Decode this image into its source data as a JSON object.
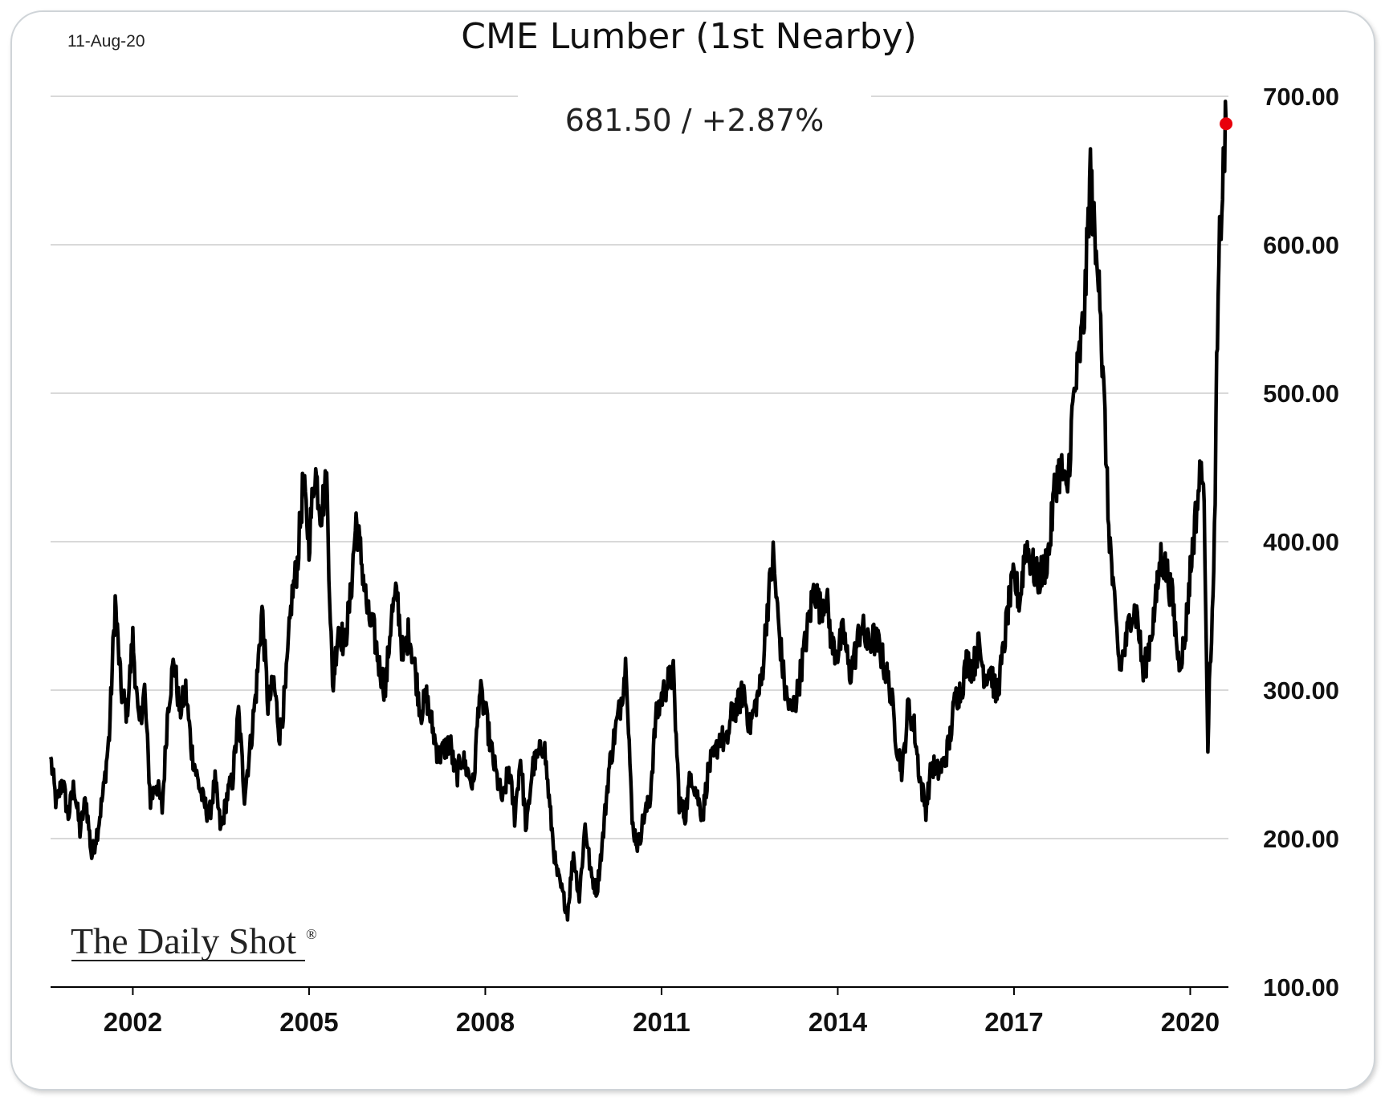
{
  "header": {
    "date": "11-Aug-20",
    "last_value_label": "681.50  /  +2.87%"
  },
  "branding": {
    "name": "The Daily Shot",
    "mark": "®"
  },
  "colors": {
    "line": "#000000",
    "marker": "#e8000b",
    "grid": "#d9d9d9",
    "axis": "#000000"
  },
  "chart_data": {
    "type": "line",
    "title": "CME Lumber (1st Nearby)",
    "xlabel": "",
    "ylabel": "",
    "xlim": [
      2000.6,
      2020.65
    ],
    "ylim": [
      100,
      700
    ],
    "y_ticks": [
      100,
      200,
      300,
      400,
      500,
      600,
      700
    ],
    "y_tick_labels": [
      "100.00",
      "200.00",
      "300.00",
      "400.00",
      "500.00",
      "600.00",
      "700.00"
    ],
    "x_ticks": [
      2002,
      2005,
      2008,
      2011,
      2014,
      2017,
      2020
    ],
    "x_tick_labels": [
      "2002",
      "2005",
      "2008",
      "2011",
      "2014",
      "2017",
      "2020"
    ],
    "grid": "horizontal",
    "last_point": {
      "x": 2020.61,
      "y": 681.5,
      "change_pct": 2.87
    },
    "series": [
      {
        "name": "CME Lumber (1st Nearby)",
        "x": [
          2000.6,
          2000.7,
          2000.8,
          2000.9,
          2001.0,
          2001.1,
          2001.2,
          2001.3,
          2001.4,
          2001.5,
          2001.6,
          2001.7,
          2001.8,
          2001.9,
          2002.0,
          2002.1,
          2002.2,
          2002.3,
          2002.4,
          2002.5,
          2002.6,
          2002.7,
          2002.8,
          2002.9,
          2003.0,
          2003.1,
          2003.2,
          2003.3,
          2003.4,
          2003.5,
          2003.6,
          2003.7,
          2003.8,
          2003.9,
          2004.0,
          2004.1,
          2004.2,
          2004.3,
          2004.4,
          2004.5,
          2004.6,
          2004.7,
          2004.8,
          2004.9,
          2005.0,
          2005.1,
          2005.2,
          2005.3,
          2005.4,
          2005.5,
          2005.6,
          2005.7,
          2005.8,
          2005.9,
          2006.0,
          2006.1,
          2006.2,
          2006.3,
          2006.4,
          2006.5,
          2006.6,
          2006.7,
          2006.8,
          2006.9,
          2007.0,
          2007.1,
          2007.2,
          2007.3,
          2007.4,
          2007.5,
          2007.6,
          2007.7,
          2007.8,
          2007.9,
          2008.0,
          2008.1,
          2008.2,
          2008.3,
          2008.4,
          2008.5,
          2008.6,
          2008.7,
          2008.8,
          2008.9,
          2009.0,
          2009.1,
          2009.2,
          2009.3,
          2009.4,
          2009.5,
          2009.6,
          2009.7,
          2009.8,
          2009.9,
          2010.0,
          2010.1,
          2010.2,
          2010.3,
          2010.4,
          2010.5,
          2010.6,
          2010.7,
          2010.8,
          2010.9,
          2011.0,
          2011.1,
          2011.2,
          2011.3,
          2011.4,
          2011.5,
          2011.6,
          2011.7,
          2011.8,
          2011.9,
          2012.0,
          2012.1,
          2012.2,
          2012.3,
          2012.4,
          2012.5,
          2012.6,
          2012.7,
          2012.8,
          2012.9,
          2013.0,
          2013.1,
          2013.2,
          2013.3,
          2013.4,
          2013.5,
          2013.6,
          2013.7,
          2013.8,
          2013.9,
          2014.0,
          2014.1,
          2014.2,
          2014.3,
          2014.4,
          2014.5,
          2014.6,
          2014.7,
          2014.8,
          2014.9,
          2015.0,
          2015.1,
          2015.2,
          2015.3,
          2015.4,
          2015.5,
          2015.6,
          2015.7,
          2015.8,
          2015.9,
          2016.0,
          2016.1,
          2016.2,
          2016.3,
          2016.4,
          2016.5,
          2016.6,
          2016.7,
          2016.8,
          2016.9,
          2017.0,
          2017.1,
          2017.2,
          2017.3,
          2017.4,
          2017.5,
          2017.6,
          2017.7,
          2017.8,
          2017.9,
          2018.0,
          2018.1,
          2018.2,
          2018.3,
          2018.4,
          2018.45,
          2018.5,
          2018.55,
          2018.6,
          2018.7,
          2018.8,
          2018.9,
          2019.0,
          2019.1,
          2019.2,
          2019.3,
          2019.4,
          2019.5,
          2019.6,
          2019.7,
          2019.8,
          2019.9,
          2020.0,
          2020.1,
          2020.2,
          2020.25,
          2020.3,
          2020.35,
          2020.4,
          2020.45,
          2020.5,
          2020.55,
          2020.61
        ],
        "y": [
          255,
          222,
          240,
          215,
          236,
          205,
          227,
          188,
          206,
          232,
          270,
          360,
          300,
          285,
          335,
          275,
          300,
          225,
          238,
          220,
          290,
          320,
          285,
          300,
          260,
          240,
          225,
          215,
          238,
          205,
          228,
          240,
          285,
          230,
          262,
          300,
          355,
          290,
          305,
          270,
          300,
          360,
          385,
          440,
          400,
          450,
          420,
          440,
          300,
          345,
          330,
          360,
          415,
          385,
          350,
          340,
          315,
          300,
          350,
          365,
          320,
          340,
          315,
          285,
          295,
          275,
          255,
          260,
          265,
          240,
          255,
          245,
          235,
          300,
          285,
          260,
          240,
          225,
          248,
          215,
          255,
          205,
          248,
          255,
          265,
          220,
          180,
          165,
          150,
          190,
          160,
          210,
          175,
          165,
          200,
          245,
          270,
          290,
          320,
          210,
          195,
          215,
          225,
          280,
          295,
          305,
          310,
          225,
          215,
          245,
          230,
          215,
          248,
          255,
          270,
          262,
          285,
          290,
          300,
          275,
          290,
          305,
          355,
          390,
          340,
          300,
          285,
          295,
          320,
          345,
          370,
          355,
          365,
          330,
          325,
          340,
          310,
          325,
          345,
          330,
          335,
          330,
          315,
          300,
          265,
          245,
          290,
          275,
          240,
          220,
          250,
          245,
          250,
          265,
          295,
          300,
          320,
          315,
          330,
          310,
          315,
          295,
          320,
          355,
          375,
          360,
          400,
          385,
          375,
          380,
          395,
          440,
          450,
          430,
          490,
          520,
          555,
          650,
          585,
          590,
          520,
          480,
          420,
          360,
          315,
          330,
          355,
          350,
          310,
          330,
          355,
          390,
          380,
          360,
          320,
          330,
          380,
          420,
          455,
          400,
          265,
          330,
          370,
          510,
          600,
          640,
          681.5
        ]
      }
    ]
  }
}
